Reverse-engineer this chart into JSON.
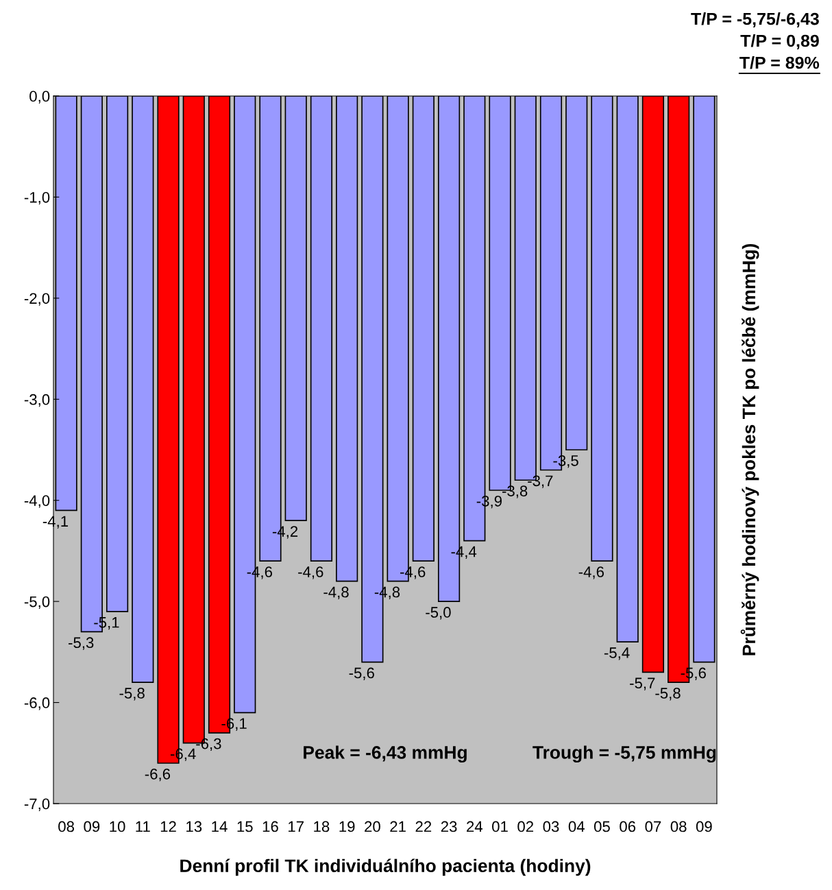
{
  "chart_data": {
    "type": "bar",
    "xlabel": "Denní profil TK individuálního pacienta (hodiny)",
    "ylabel": "Průměrný hodinový pokles TK po léčbě (mmHg)",
    "categories": [
      "08",
      "09",
      "10",
      "11",
      "12",
      "13",
      "14",
      "15",
      "16",
      "17",
      "18",
      "19",
      "20",
      "21",
      "22",
      "23",
      "24",
      "01",
      "02",
      "03",
      "04",
      "05",
      "06",
      "07",
      "08",
      "09"
    ],
    "values": [
      -4.1,
      -5.3,
      -5.1,
      -5.8,
      -6.6,
      -6.4,
      -6.3,
      -6.1,
      -4.6,
      -4.2,
      -4.6,
      -4.8,
      -5.6,
      -4.8,
      -4.6,
      -5.0,
      -4.4,
      -3.9,
      -3.8,
      -3.7,
      -3.5,
      -4.6,
      -5.4,
      -5.7,
      -5.8,
      -5.6
    ],
    "colors": [
      "#9999ff",
      "#9999ff",
      "#9999ff",
      "#9999ff",
      "#ff0000",
      "#ff0000",
      "#ff0000",
      "#9999ff",
      "#9999ff",
      "#9999ff",
      "#9999ff",
      "#9999ff",
      "#9999ff",
      "#9999ff",
      "#9999ff",
      "#9999ff",
      "#9999ff",
      "#9999ff",
      "#9999ff",
      "#9999ff",
      "#9999ff",
      "#9999ff",
      "#9999ff",
      "#ff0000",
      "#ff0000",
      "#9999ff"
    ],
    "value_labels": [
      "-4,1",
      "-5,3",
      "-5,1",
      "-5,8",
      "-6,6",
      "-6,4",
      "-6,3",
      "-6,1",
      "-4,6",
      "-4,2",
      "-4,6",
      "-4,8",
      "-5,6",
      "-4,8",
      "-4,6",
      "-5,0",
      "-4,4",
      "-3,9",
      "-3,8",
      "-3,7",
      "-3,5",
      "-4,6",
      "-5,4",
      "-5,7",
      "-5,8",
      "-5,6"
    ],
    "ylim": [
      -7,
      0
    ],
    "yticks": [
      {
        "value": 0,
        "label": "0,0"
      },
      {
        "value": -1,
        "label": "-1,0"
      },
      {
        "value": -2,
        "label": "-2,0"
      },
      {
        "value": -3,
        "label": "-3,0"
      },
      {
        "value": -4,
        "label": "-4,0"
      },
      {
        "value": -5,
        "label": "-5,0"
      },
      {
        "value": -6,
        "label": "-6,0"
      },
      {
        "value": -7,
        "label": "-7,0"
      }
    ],
    "annotations": [
      "Peak = -6,43 mmHg",
      "Trough = -5,75 mmHg",
      "T/P = -5,75/-6,43",
      "T/P = 0,89",
      "T/P = 89%"
    ],
    "grid": false,
    "legend": false
  }
}
